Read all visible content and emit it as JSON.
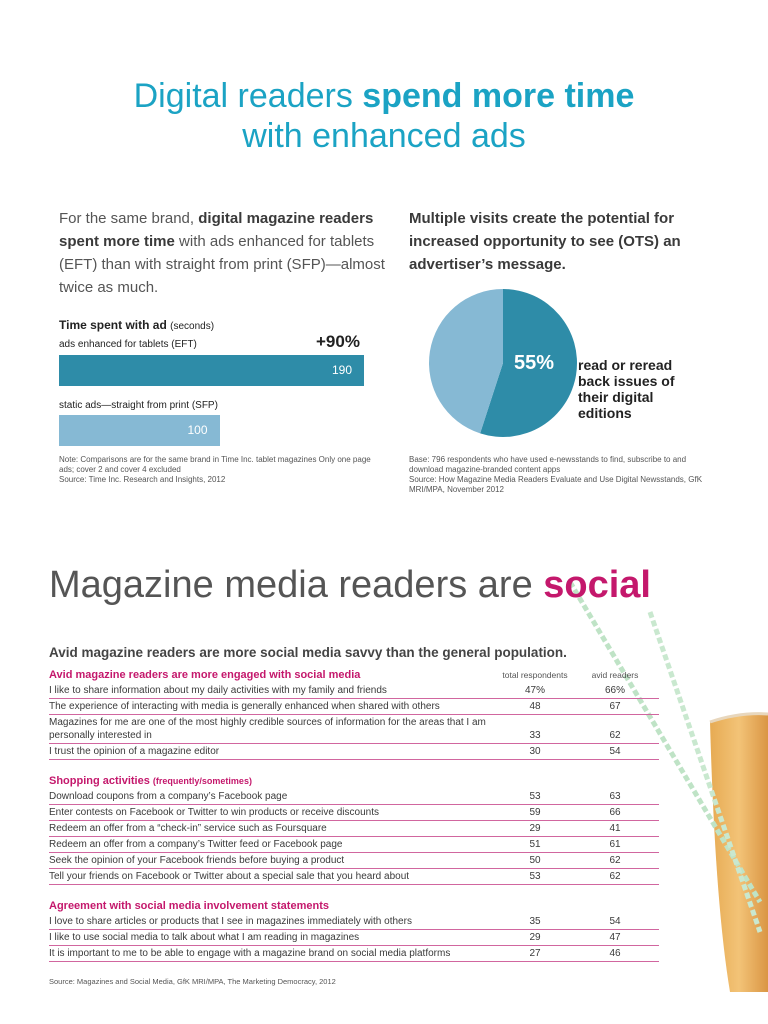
{
  "header": {
    "title_prefix": "Digital readers ",
    "title_emphasis": "spend more time",
    "title_line2": "with enhanced ads"
  },
  "left": {
    "intro_1": "For the same brand, ",
    "intro_bold": "digital magazine readers spent more time",
    "intro_2": " with ads enhanced for tablets (EFT) than with straight from print (SFP)—almost twice as much.",
    "chart_title": "Time spent with ad",
    "chart_unit": "(seconds)",
    "note": "Note: Comparisons are for the same brand in Time Inc. tablet magazines Only one page ads; cover 2 and cover 4 excluded",
    "source": "Source: Time Inc. Research and Insights, 2012"
  },
  "right": {
    "heading": "Multiple visits create the potential for increased opportunity to see (OTS) an advertiser’s message.",
    "pie_label": "read or reread back issues of their digital editions",
    "note": "Base: 796 respondents who have used e-newsstands to find, subscribe to and download magazine-branded content apps",
    "source": "Source: How Magazine Media Readers Evaluate and Use Digital Newsstands, GfK MRI/MPA, November 2012"
  },
  "chart_data": [
    {
      "type": "bar",
      "title": "Time spent with ad (seconds)",
      "categories": [
        "ads enhanced for tablets (EFT)",
        "static ads—straight from print (SFP)"
      ],
      "values": [
        190,
        100
      ],
      "value_labels": [
        "190",
        "100"
      ],
      "annotation": "+90%",
      "xlim": [
        0,
        190
      ]
    },
    {
      "type": "pie",
      "values": [
        55,
        45
      ],
      "slice_label": "55%",
      "label": "read or reread back issues of their digital editions",
      "colors": [
        "#2e8ca8",
        "#86b9d4"
      ]
    }
  ],
  "social": {
    "title_prefix": "Magazine media readers are ",
    "title_emphasis": "social",
    "subtitle": "Avid magazine readers are more social media savvy than the general population.",
    "col_total": "total respondents",
    "col_avid": "avid readers",
    "sections": [
      {
        "title": "Avid magazine readers are more engaged with social media",
        "subtitle": "",
        "rows": [
          {
            "label": "I like to share information about my daily activities with my family and friends",
            "total": "47%",
            "avid": "66%"
          },
          {
            "label": "The experience of interacting with media is generally enhanced when shared with others",
            "total": "48",
            "avid": "67"
          },
          {
            "label": "Magazines for me are one of the most highly credible sources of information for the areas that I am personally interested in",
            "total": "33",
            "avid": "62"
          },
          {
            "label": "I trust the opinion of a magazine editor",
            "total": "30",
            "avid": "54"
          }
        ]
      },
      {
        "title": "Shopping activities",
        "subtitle": "(frequently/sometimes)",
        "rows": [
          {
            "label": "Download coupons from a company’s Facebook page",
            "total": "53",
            "avid": "63"
          },
          {
            "label": "Enter contests on Facebook or Twitter to win products or receive discounts",
            "total": "59",
            "avid": "66"
          },
          {
            "label": "Redeem an offer from a “check-in” service such as Foursquare",
            "total": "29",
            "avid": "41"
          },
          {
            "label": "Redeem an offer from a company’s Twitter feed or Facebook page",
            "total": "51",
            "avid": "61"
          },
          {
            "label": "Seek the opinion of your Facebook friends before buying a product",
            "total": "50",
            "avid": "62"
          },
          {
            "label": "Tell your friends on Facebook or Twitter about a special sale that you heard about",
            "total": "53",
            "avid": "62"
          }
        ]
      },
      {
        "title": "Agreement with social media involvement statements",
        "subtitle": "",
        "rows": [
          {
            "label": "I love to share articles or products that I see in magazines immediately with others",
            "total": "35",
            "avid": "54"
          },
          {
            "label": "I like to use social media to talk about what I am reading in magazines",
            "total": "29",
            "avid": "47"
          },
          {
            "label": "It is important to me to be able to engage with a magazine brand on social media platforms",
            "total": "27",
            "avid": "46"
          }
        ]
      }
    ],
    "footer": "Source: Magazines and Social Media, GfK MRI/MPA, The Marketing Democracy, 2012"
  }
}
